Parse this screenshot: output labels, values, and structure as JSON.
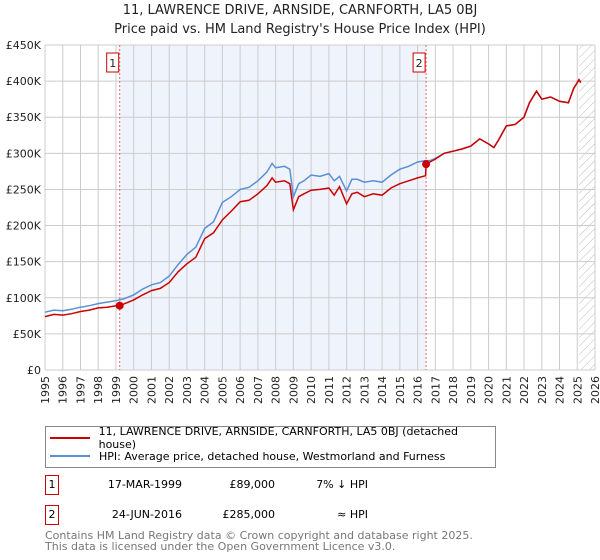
{
  "chart_data": {
    "type": "line",
    "title": "11, LAWRENCE DRIVE, ARNSIDE, CARNFORTH, LA5 0BJ",
    "subtitle": "Price paid vs. HM Land Registry's House Price Index (HPI)",
    "xlim": [
      1995,
      2026
    ],
    "ylim": [
      0,
      450000
    ],
    "x_ticks": [
      "1995",
      "1996",
      "1997",
      "1998",
      "1999",
      "2000",
      "2001",
      "2002",
      "2003",
      "2004",
      "2005",
      "2006",
      "2007",
      "2008",
      "2009",
      "2010",
      "2011",
      "2012",
      "2013",
      "2014",
      "2015",
      "2016",
      "2017",
      "2018",
      "2019",
      "2020",
      "2021",
      "2022",
      "2023",
      "2024",
      "2025",
      "2026"
    ],
    "y_ticks": [
      {
        "v": 0,
        "label": "£0"
      },
      {
        "v": 50000,
        "label": "£50K"
      },
      {
        "v": 100000,
        "label": "£100K"
      },
      {
        "v": 150000,
        "label": "£150K"
      },
      {
        "v": 200000,
        "label": "£200K"
      },
      {
        "v": 250000,
        "label": "£250K"
      },
      {
        "v": 300000,
        "label": "£300K"
      },
      {
        "v": 350000,
        "label": "£350K"
      },
      {
        "v": 400000,
        "label": "£400K"
      },
      {
        "v": 450000,
        "label": "£450K"
      }
    ],
    "grid": true,
    "shaded_period": [
      1999.21,
      2016.48
    ],
    "forecast_hatch_from": 2025.1,
    "series": [
      {
        "name": "11, LAWRENCE DRIVE, ARNSIDE, CARNFORTH, LA5 0BJ (detached house)",
        "color": "#cc0000",
        "x": [
          1995,
          1995.5,
          1996,
          1996.5,
          1997,
          1997.5,
          1998,
          1998.5,
          1999,
          1999.21,
          1999.5,
          2000,
          2000.5,
          2001,
          2001.5,
          2002,
          2002.5,
          2003,
          2003.5,
          2004,
          2004.5,
          2005,
          2005.5,
          2006,
          2006.5,
          2007,
          2007.5,
          2007.8,
          2008,
          2008.5,
          2008.8,
          2009,
          2009.3,
          2009.6,
          2010,
          2010.5,
          2011,
          2011.3,
          2011.6,
          2012,
          2012.3,
          2012.6,
          2013,
          2013.5,
          2014,
          2014.5,
          2015,
          2015.5,
          2016,
          2016.45,
          2016.48,
          2016.7,
          2017,
          2017.5,
          2018,
          2018.5,
          2019,
          2019.5,
          2020,
          2020.3,
          2020.6,
          2021,
          2021.5,
          2022,
          2022.3,
          2022.7,
          2023,
          2023.5,
          2024,
          2024.5,
          2024.8,
          2025.1,
          2025.2
        ],
        "y": [
          74000,
          77000,
          76000,
          78000,
          81000,
          83000,
          86000,
          87000,
          89000,
          89000,
          92000,
          97000,
          104000,
          110000,
          113000,
          121000,
          136000,
          147000,
          156000,
          182000,
          190000,
          208000,
          220000,
          233000,
          235000,
          244000,
          255000,
          266000,
          260000,
          262000,
          258000,
          222000,
          240000,
          244000,
          249000,
          250000,
          252000,
          242000,
          254000,
          230000,
          244000,
          246000,
          240000,
          244000,
          242000,
          252000,
          258000,
          262000,
          266000,
          269000,
          285000,
          288000,
          292000,
          300000,
          303000,
          306000,
          310000,
          320000,
          313000,
          308000,
          320000,
          338000,
          340000,
          350000,
          370000,
          386000,
          375000,
          378000,
          372000,
          370000,
          390000,
          402000,
          398000
        ]
      },
      {
        "name": "HPI: Average price, detached house, Westmorland and Furness",
        "color": "#5b8fd4",
        "x": [
          1995,
          1995.5,
          1996,
          1996.5,
          1997,
          1997.5,
          1998,
          1998.5,
          1999,
          1999.5,
          2000,
          2000.5,
          2001,
          2001.5,
          2002,
          2002.5,
          2003,
          2003.5,
          2004,
          2004.5,
          2005,
          2005.5,
          2006,
          2006.5,
          2007,
          2007.5,
          2007.8,
          2008,
          2008.5,
          2008.8,
          2009,
          2009.3,
          2009.6,
          2010,
          2010.5,
          2011,
          2011.3,
          2011.6,
          2012,
          2012.3,
          2012.6,
          2013,
          2013.5,
          2014,
          2014.5,
          2015,
          2015.5,
          2016,
          2016.45,
          2016.7,
          2017,
          2017.5,
          2018,
          2018.5,
          2019,
          2019.5,
          2020,
          2020.3,
          2020.6,
          2021,
          2021.5,
          2022,
          2022.3,
          2022.7,
          2023,
          2023.5,
          2024,
          2024.5,
          2024.8,
          2025.1,
          2025.2
        ],
        "y": [
          80000,
          83000,
          82000,
          84000,
          87000,
          89000,
          92000,
          94000,
          96000,
          99000,
          104000,
          112000,
          118000,
          121000,
          130000,
          146000,
          160000,
          170000,
          196000,
          205000,
          232000,
          240000,
          250000,
          253000,
          262000,
          274000,
          286000,
          280000,
          282000,
          278000,
          240000,
          258000,
          262000,
          270000,
          268000,
          272000,
          262000,
          268000,
          248000,
          264000,
          264000,
          260000,
          262000,
          260000,
          270000,
          278000,
          282000,
          288000,
          290000,
          290000,
          293000,
          300000,
          303000,
          306000,
          310000,
          320000,
          313000,
          308000,
          320000,
          338000,
          340000,
          350000,
          370000,
          386000,
          375000,
          378000,
          372000,
          370000,
          390000,
          402000,
          398000
        ]
      }
    ],
    "sales": [
      {
        "label": "1",
        "x": 1999.21,
        "y": 89000
      },
      {
        "label": "2",
        "x": 2016.48,
        "y": 285000
      }
    ]
  },
  "legend": {
    "property": "11, LAWRENCE DRIVE, ARNSIDE, CARNFORTH, LA5 0BJ (detached house)",
    "hpi": "HPI: Average price, detached house, Westmorland and Furness"
  },
  "sales_table": [
    {
      "num": "1",
      "date": "17-MAR-1999",
      "price": "£89,000",
      "relation": "7% ↓ HPI"
    },
    {
      "num": "2",
      "date": "24-JUN-2016",
      "price": "£285,000",
      "relation": "≈ HPI"
    }
  ],
  "footer": {
    "line1": "Contains HM Land Registry data © Crown copyright and database right 2025.",
    "line2": "This data is licensed under the Open Government Licence v3.0."
  },
  "colors": {
    "property": "#cc0000",
    "hpi": "#5b8fd4",
    "shade": "#eef3fc",
    "grid": "#cccccc"
  }
}
